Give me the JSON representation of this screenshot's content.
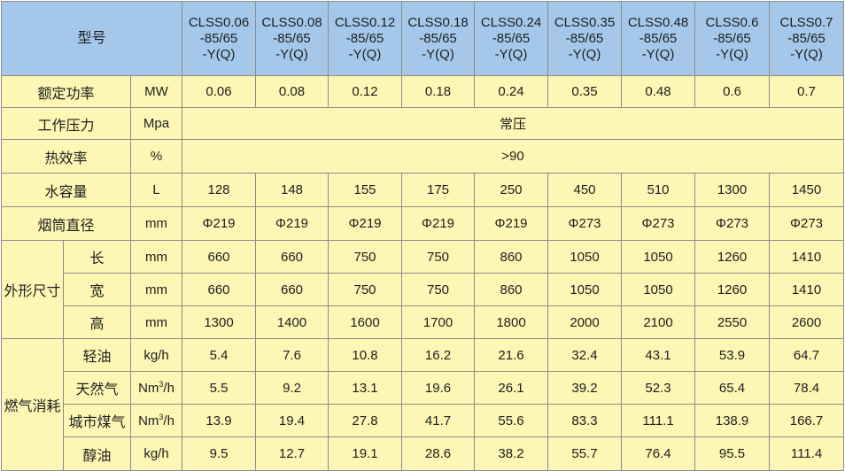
{
  "header": {
    "model_label": "型号",
    "models": [
      {
        "line1": "CLSS0.06",
        "line2": "-85/65",
        "line3": "-Y(Q)"
      },
      {
        "line1": "CLSS0.08",
        "line2": "-85/65",
        "line3": "-Y(Q)"
      },
      {
        "line1": "CLSS0.12",
        "line2": "-85/65",
        "line3": "-Y(Q)"
      },
      {
        "line1": "CLSS0.18",
        "line2": "-85/65",
        "line3": "-Y(Q)"
      },
      {
        "line1": "CLSS0.24",
        "line2": "-85/65",
        "line3": "-Y(Q)"
      },
      {
        "line1": "CLSS0.35",
        "line2": "-85/65",
        "line3": "-Y(Q)"
      },
      {
        "line1": "CLSS0.48",
        "line2": "-85/65",
        "line3": "-Y(Q)"
      },
      {
        "line1": "CLSS0.6",
        "line2": "-85/65",
        "line3": "-Y(Q)"
      },
      {
        "line1": "CLSS0.7",
        "line2": "-85/65",
        "line3": "-Y(Q)"
      }
    ]
  },
  "rows": {
    "power": {
      "label": "额定功率",
      "unit": "MW",
      "values": [
        "0.06",
        "0.08",
        "0.12",
        "0.18",
        "0.24",
        "0.35",
        "0.48",
        "0.6",
        "0.7"
      ]
    },
    "pressure": {
      "label": "工作压力",
      "unit": "Mpa",
      "value": "常压"
    },
    "efficiency": {
      "label": "热效率",
      "unit": "%",
      "value": ">90"
    },
    "water": {
      "label": "水容量",
      "unit": "L",
      "values": [
        "128",
        "148",
        "155",
        "175",
        "250",
        "450",
        "510",
        "1300",
        "1450"
      ]
    },
    "chimney": {
      "label": "烟筒直径",
      "unit": "mm",
      "values": [
        "Φ219",
        "Φ219",
        "Φ219",
        "Φ219",
        "Φ219",
        "Φ273",
        "Φ273",
        "Φ273",
        "Φ273"
      ]
    }
  },
  "dimensions": {
    "group_label": "外形尺寸",
    "items": [
      {
        "label": "长",
        "unit": "mm",
        "values": [
          "660",
          "660",
          "750",
          "750",
          "860",
          "1050",
          "1050",
          "1260",
          "1410"
        ]
      },
      {
        "label": "宽",
        "unit": "mm",
        "values": [
          "660",
          "660",
          "750",
          "750",
          "860",
          "1050",
          "1050",
          "1260",
          "1410"
        ]
      },
      {
        "label": "高",
        "unit": "mm",
        "values": [
          "1300",
          "1400",
          "1600",
          "1700",
          "1800",
          "2000",
          "2100",
          "2550",
          "2600"
        ]
      }
    ]
  },
  "fuel": {
    "group_label": "燃气消耗",
    "items": [
      {
        "label": "轻油",
        "unit": "kg/h",
        "values": [
          "5.4",
          "7.6",
          "10.8",
          "16.2",
          "21.6",
          "32.4",
          "43.1",
          "53.9",
          "64.7"
        ]
      },
      {
        "label": "天然气",
        "unit_base": "Nm",
        "unit_sup": "3",
        "unit_tail": "/h",
        "values": [
          "5.5",
          "9.2",
          "13.1",
          "19.6",
          "26.1",
          "39.2",
          "52.3",
          "65.4",
          "78.4"
        ]
      },
      {
        "label": "城市煤气",
        "unit_base": "Nm",
        "unit_sup": "3",
        "unit_tail": "/h",
        "values": [
          "13.9",
          "19.4",
          "27.8",
          "41.7",
          "55.6",
          "83.3",
          "111.1",
          "138.9",
          "166.7"
        ]
      },
      {
        "label": "醇油",
        "unit": "kg/h",
        "values": [
          "9.5",
          "12.7",
          "19.1",
          "28.6",
          "38.2",
          "55.7",
          "76.4",
          "95.5",
          "111.4"
        ]
      }
    ]
  },
  "colors": {
    "header_bg": "#a5c8ea",
    "body_bg": "#fdf6b4",
    "border": "#8c8c8c"
  }
}
